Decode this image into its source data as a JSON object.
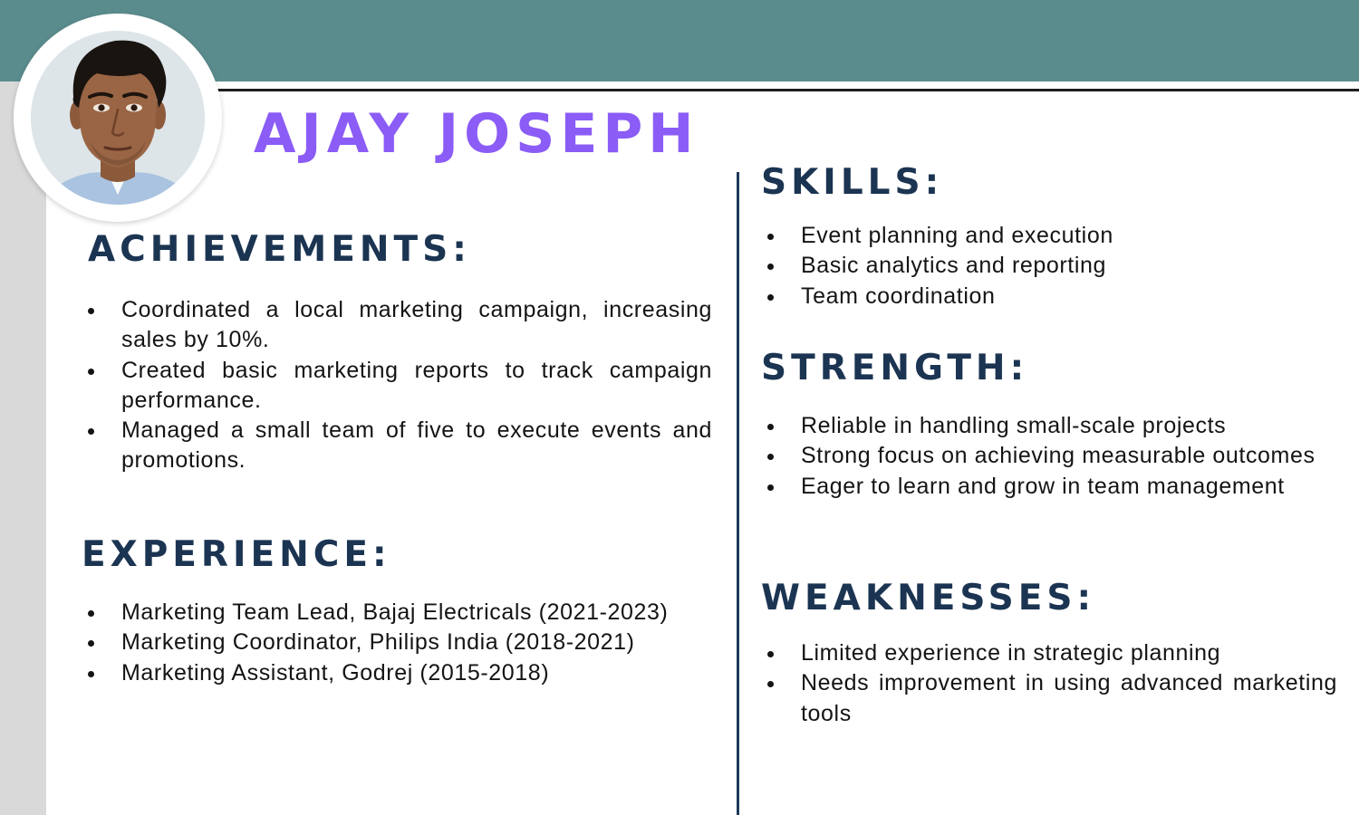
{
  "resume": {
    "name": "AJAY JOSEPH",
    "accent_color": "#8b5cf6",
    "heading_color": "#1b3452",
    "band_color": "#5b8c8d",
    "photo": "profile-photo"
  },
  "achievements": {
    "title": "ACHIEVEMENTS:",
    "items": [
      "Coordinated a local marketing campaign, increasing sales by 10%.",
      "Created basic marketing reports to track campaign performance.",
      "Managed a small team of five to execute events and promotions."
    ]
  },
  "experience": {
    "title": "EXPERIENCE:",
    "items": [
      "Marketing Team Lead, Bajaj Electricals (2021-2023)",
      "Marketing Coordinator, Philips India (2018-2021)",
      "Marketing Assistant, Godrej (2015-2018)"
    ]
  },
  "skills": {
    "title": "SKILLS:",
    "items": [
      "Event planning and execution",
      "Basic analytics and reporting",
      "Team coordination"
    ]
  },
  "strength": {
    "title": "STRENGTH:",
    "items": [
      "Reliable in handling small-scale projects",
      "Strong focus on achieving measurable outcomes",
      "Eager to learn and grow in team management"
    ]
  },
  "weaknesses": {
    "title": "WEAKNESSES:",
    "items": [
      "Limited experience in strategic planning",
      "Needs improvement in using advanced marketing tools"
    ]
  }
}
